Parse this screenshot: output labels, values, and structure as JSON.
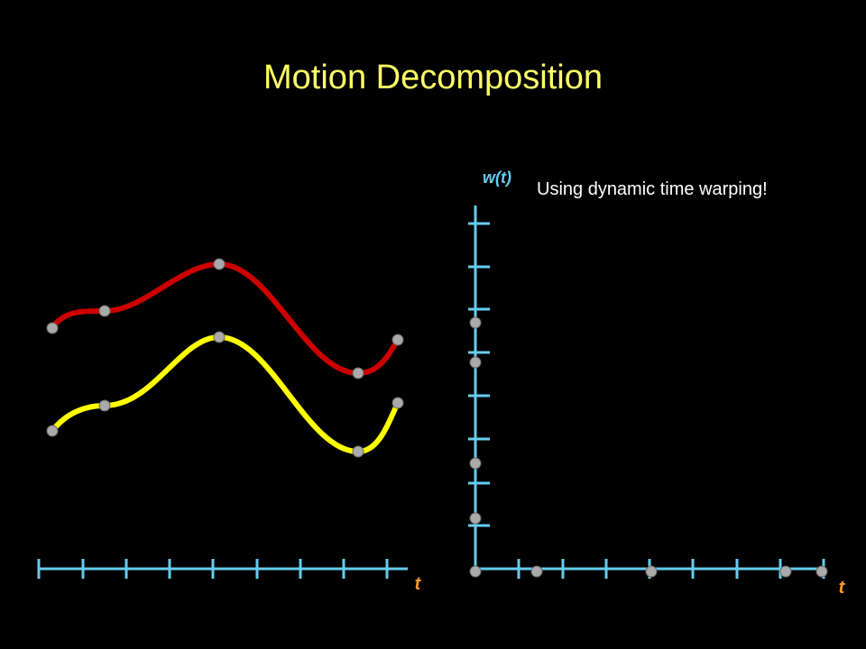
{
  "title": "Motion Decomposition",
  "warp_axis_label": "w(t)",
  "note": "Using dynamic time warping!",
  "left_axis_label": "t",
  "right_axis_label": "t"
}
